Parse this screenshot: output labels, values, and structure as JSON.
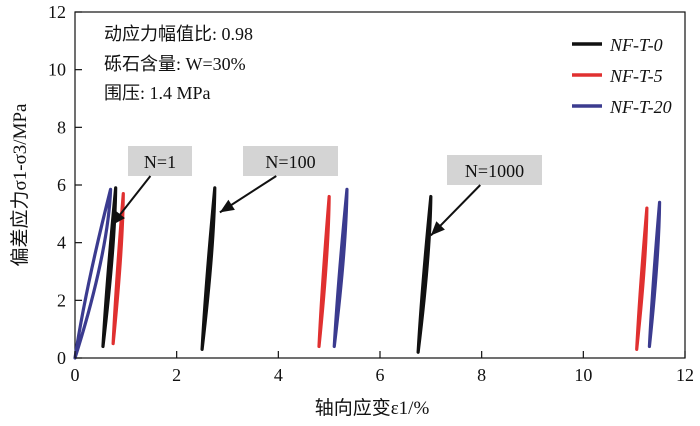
{
  "chart_data": {
    "type": "line",
    "xlabel": "轴向应变ε1/%",
    "ylabel": "偏差应力σ1-σ3/MPa",
    "xlim": [
      0,
      12
    ],
    "ylim": [
      0,
      12
    ],
    "xticks": [
      0,
      2,
      4,
      6,
      8,
      10,
      12
    ],
    "yticks": [
      0,
      2,
      4,
      6,
      8,
      10,
      12
    ],
    "grid": false,
    "legend_position": "top-right",
    "notes": [
      "动应力幅值比: 0.98",
      "砾石含量: W=30%",
      "围压: 1.4 MPa"
    ],
    "series": [
      {
        "name": "NF-T-0",
        "color": "#111111",
        "loops": [
          {
            "cycle": "N=1",
            "x_min": 0.55,
            "x_max": 0.8,
            "y_min": 0.4,
            "y_max": 5.9
          },
          {
            "cycle": "N=100",
            "x_min": 2.5,
            "x_max": 2.75,
            "y_min": 0.3,
            "y_max": 5.9
          },
          {
            "cycle": "N=1000",
            "x_min": 6.75,
            "x_max": 7.0,
            "y_min": 0.2,
            "y_max": 5.6
          }
        ]
      },
      {
        "name": "NF-T-5",
        "color": "#e03030",
        "loops": [
          {
            "cycle": "N=1",
            "x_min": 0.75,
            "x_max": 0.95,
            "y_min": 0.5,
            "y_max": 5.7
          },
          {
            "cycle": "N=100",
            "x_min": 4.8,
            "x_max": 5.0,
            "y_min": 0.4,
            "y_max": 5.6
          },
          {
            "cycle": "N=1000",
            "x_min": 11.05,
            "x_max": 11.25,
            "y_min": 0.3,
            "y_max": 5.2
          }
        ]
      },
      {
        "name": "NF-T-20",
        "color": "#3b3b8f",
        "loops": [
          {
            "cycle": "N=1",
            "x_min": 0.0,
            "x_max": 0.7,
            "y_min": 0.0,
            "y_max": 5.85
          },
          {
            "cycle": "N=100",
            "x_min": 5.1,
            "x_max": 5.35,
            "y_min": 0.4,
            "y_max": 5.85
          },
          {
            "cycle": "N=1000",
            "x_min": 11.3,
            "x_max": 11.5,
            "y_min": 0.4,
            "y_max": 5.4
          }
        ]
      }
    ],
    "annotations": [
      {
        "label": "N=1",
        "arrow_to": [
          0.72,
          4.6
        ]
      },
      {
        "label": "N=100",
        "arrow_to": [
          2.85,
          5.05
        ]
      },
      {
        "label": "N=1000",
        "arrow_to": [
          7.0,
          4.25
        ]
      }
    ]
  }
}
